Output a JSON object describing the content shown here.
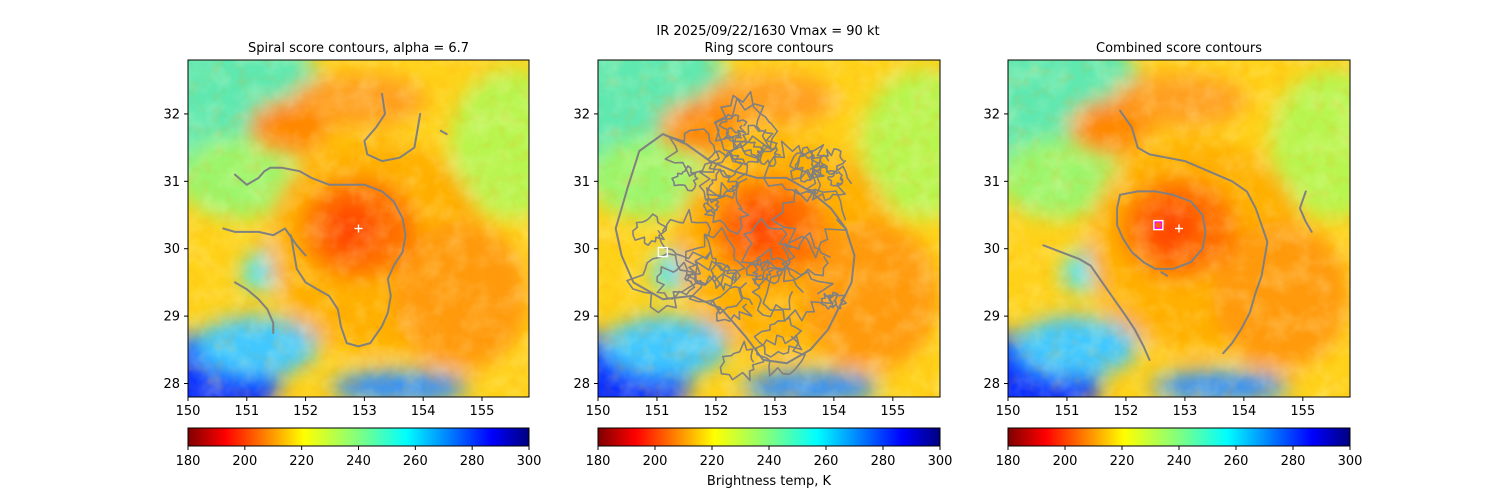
{
  "figure": {
    "suptitle_line1": "IR  2025/09/22/1630    Vmax = 90 kt",
    "colorbar_label": "Brightness temp, K"
  },
  "chart_data": [
    {
      "type": "heatmap",
      "title": "Spiral score contours, alpha =  6.7",
      "xlim": [
        150,
        155.8
      ],
      "ylim": [
        27.8,
        32.8
      ],
      "xticks": [
        150,
        151,
        152,
        153,
        154,
        155
      ],
      "yticks": [
        28,
        29,
        30,
        31,
        32
      ],
      "colorbar": {
        "cmap": "jet_r",
        "range": [
          180,
          300
        ],
        "ticks": [
          180,
          200,
          220,
          240,
          260,
          280,
          300
        ]
      },
      "storm_center": {
        "lon": 152.9,
        "lat": 30.3
      },
      "markers": [
        {
          "kind": "plus",
          "color": "#ffffff",
          "lon": 152.9,
          "lat": 30.3
        }
      ],
      "contour_color": "#808080",
      "contours": [
        [
          [
            150.8,
            31.1
          ],
          [
            151.0,
            30.95
          ],
          [
            151.2,
            31.05
          ],
          [
            151.3,
            31.15
          ],
          [
            151.4,
            31.2
          ],
          [
            151.6,
            31.2
          ],
          [
            151.9,
            31.15
          ],
          [
            152.1,
            31.05
          ],
          [
            152.4,
            30.95
          ],
          [
            152.7,
            30.95
          ],
          [
            153.0,
            30.95
          ],
          [
            153.3,
            30.85
          ],
          [
            153.5,
            30.7
          ],
          [
            153.65,
            30.45
          ],
          [
            153.7,
            30.2
          ],
          [
            153.65,
            29.95
          ],
          [
            153.5,
            29.75
          ],
          [
            153.4,
            29.55
          ],
          [
            153.45,
            29.3
          ],
          [
            153.4,
            29.05
          ],
          [
            153.3,
            28.85
          ],
          [
            153.1,
            28.6
          ],
          [
            152.9,
            28.55
          ],
          [
            152.7,
            28.6
          ],
          [
            152.6,
            28.85
          ],
          [
            152.55,
            29.1
          ],
          [
            152.4,
            29.3
          ],
          [
            152.2,
            29.4
          ],
          [
            152.0,
            29.5
          ],
          [
            151.85,
            29.7
          ],
          [
            151.8,
            29.95
          ],
          [
            151.75,
            30.2
          ]
        ],
        [
          [
            150.6,
            30.3
          ],
          [
            150.8,
            30.25
          ],
          [
            151.0,
            30.25
          ],
          [
            151.2,
            30.25
          ],
          [
            151.45,
            30.2
          ],
          [
            151.65,
            30.3
          ],
          [
            151.85,
            30.05
          ],
          [
            152.0,
            29.9
          ]
        ],
        [
          [
            150.8,
            29.5
          ],
          [
            151.0,
            29.4
          ],
          [
            151.2,
            29.25
          ],
          [
            151.35,
            29.1
          ],
          [
            151.45,
            28.9
          ],
          [
            151.45,
            28.75
          ]
        ],
        [
          [
            153.3,
            32.3
          ],
          [
            153.35,
            32.0
          ],
          [
            153.2,
            31.8
          ],
          [
            153.0,
            31.6
          ],
          [
            153.05,
            31.4
          ],
          [
            153.3,
            31.3
          ],
          [
            153.6,
            31.35
          ],
          [
            153.85,
            31.5
          ],
          [
            153.9,
            31.75
          ],
          [
            153.95,
            32.0
          ]
        ],
        [
          [
            154.3,
            31.75
          ],
          [
            154.4,
            31.7
          ]
        ]
      ]
    },
    {
      "type": "heatmap",
      "title": "Ring score contours",
      "xlim": [
        150,
        155.8
      ],
      "ylim": [
        27.8,
        32.8
      ],
      "xticks": [
        150,
        151,
        152,
        153,
        154,
        155
      ],
      "yticks": [
        28,
        29,
        30,
        31,
        32
      ],
      "colorbar": {
        "cmap": "jet_r",
        "range": [
          180,
          300
        ],
        "ticks": [
          180,
          200,
          220,
          240,
          260,
          280,
          300
        ]
      },
      "storm_center": {
        "lon": 152.9,
        "lat": 30.3
      },
      "markers": [
        {
          "kind": "square",
          "color": "#ffffff",
          "lon": 151.1,
          "lat": 29.95
        }
      ],
      "contour_color": "#808080",
      "contour_region": {
        "lon_range": [
          150.3,
          154.4
        ],
        "lat_range": [
          28.2,
          32.0
        ]
      },
      "contours": []
    },
    {
      "type": "heatmap",
      "title": "Combined score contours",
      "xlim": [
        150,
        155.8
      ],
      "ylim": [
        27.8,
        32.8
      ],
      "xticks": [
        150,
        151,
        152,
        153,
        154,
        155
      ],
      "yticks": [
        28,
        29,
        30,
        31,
        32
      ],
      "colorbar": {
        "cmap": "jet_r",
        "range": [
          180,
          300
        ],
        "ticks": [
          180,
          200,
          220,
          240,
          260,
          280,
          300
        ]
      },
      "storm_center": {
        "lon": 152.9,
        "lat": 30.3
      },
      "markers": [
        {
          "kind": "plus",
          "color": "#ffffff",
          "lon": 152.9,
          "lat": 30.3
        },
        {
          "kind": "circle",
          "color": "#ff00ff",
          "lon": 152.55,
          "lat": 30.35
        },
        {
          "kind": "square",
          "color": "#ffffff",
          "lon": 152.55,
          "lat": 30.35
        }
      ],
      "contour_color": "#808080",
      "contours": [
        [
          [
            151.9,
            30.8
          ],
          [
            152.2,
            30.85
          ],
          [
            152.5,
            30.85
          ],
          [
            152.8,
            30.8
          ],
          [
            153.1,
            30.7
          ],
          [
            153.3,
            30.5
          ],
          [
            153.35,
            30.25
          ],
          [
            153.3,
            30.0
          ],
          [
            153.1,
            29.8
          ],
          [
            152.8,
            29.7
          ],
          [
            152.5,
            29.7
          ],
          [
            152.3,
            29.8
          ],
          [
            152.1,
            29.95
          ],
          [
            151.95,
            30.15
          ],
          [
            151.85,
            30.35
          ],
          [
            151.85,
            30.6
          ],
          [
            151.9,
            30.8
          ]
        ],
        [
          [
            151.9,
            32.05
          ],
          [
            152.1,
            31.8
          ],
          [
            152.2,
            31.5
          ],
          [
            152.4,
            31.4
          ],
          [
            152.7,
            31.35
          ],
          [
            153.0,
            31.3
          ],
          [
            153.4,
            31.15
          ],
          [
            153.8,
            31.0
          ],
          [
            154.05,
            30.85
          ],
          [
            154.2,
            30.6
          ],
          [
            154.3,
            30.35
          ],
          [
            154.4,
            30.1
          ],
          [
            154.35,
            29.85
          ],
          [
            154.3,
            29.6
          ],
          [
            154.2,
            29.35
          ],
          [
            154.1,
            29.05
          ],
          [
            153.95,
            28.8
          ],
          [
            153.8,
            28.6
          ],
          [
            153.65,
            28.45
          ]
        ],
        [
          [
            150.6,
            30.05
          ],
          [
            150.9,
            29.95
          ],
          [
            151.2,
            29.85
          ],
          [
            151.4,
            29.75
          ],
          [
            151.6,
            29.5
          ],
          [
            151.8,
            29.25
          ],
          [
            152.0,
            29.0
          ],
          [
            152.15,
            28.8
          ],
          [
            152.3,
            28.55
          ],
          [
            152.4,
            28.35
          ]
        ],
        [
          [
            155.05,
            30.85
          ],
          [
            154.95,
            30.6
          ],
          [
            155.05,
            30.4
          ],
          [
            155.15,
            30.25
          ]
        ],
        [
          [
            152.6,
            29.65
          ],
          [
            152.7,
            29.6
          ]
        ]
      ]
    }
  ]
}
